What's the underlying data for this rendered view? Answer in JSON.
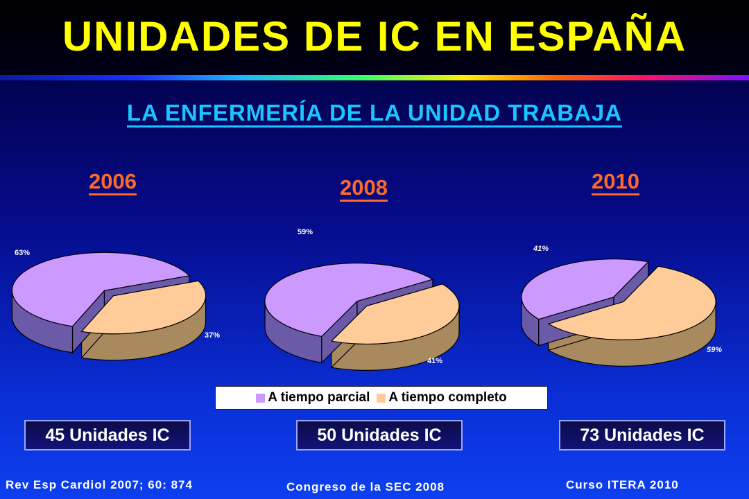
{
  "title": "UNIDADES DE IC EN ESPAÑA",
  "subtitle": "LA ENFERMERÍA DE LA UNIDAD TRABAJA",
  "legend": {
    "items": [
      {
        "label": "A tiempo parcial",
        "color": "#cc99ff"
      },
      {
        "label": "A tiempo completo",
        "color": "#ffcc99"
      }
    ]
  },
  "chart_data": [
    {
      "type": "pie",
      "title": "2006",
      "categories": [
        "A tiempo parcial",
        "A tiempo completo"
      ],
      "values": [
        63,
        37
      ],
      "labels": [
        "63%",
        "37%"
      ]
    },
    {
      "type": "pie",
      "title": "2008",
      "categories": [
        "A tiempo parcial",
        "A tiempo completo"
      ],
      "values": [
        59,
        41
      ],
      "labels": [
        "59%",
        "41%"
      ]
    },
    {
      "type": "pie",
      "title": "2010",
      "categories": [
        "A tiempo parcial",
        "A tiempo completo"
      ],
      "values": [
        41,
        59
      ],
      "labels": [
        "41%",
        "59%"
      ]
    }
  ],
  "units": [
    "45 Unidades IC",
    "50 Unidades IC",
    "73 Unidades IC"
  ],
  "sources": [
    "Rev Esp Cardiol 2007; 60: 874",
    "Congreso de la SEC 2008",
    "Curso ITERA 2010"
  ]
}
